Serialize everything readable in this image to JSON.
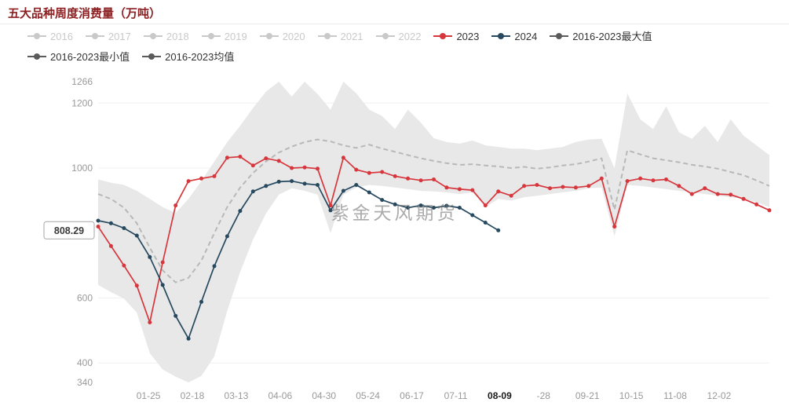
{
  "page": {
    "title": "五大品种周度消费量（万吨）"
  },
  "watermark": "紫金天风期货",
  "legend": {
    "inactive_color": "#c9c9c9",
    "active_text_color": "#333333",
    "items": [
      {
        "label": "2016",
        "color": "#c9c9c9",
        "active": false
      },
      {
        "label": "2017",
        "color": "#c9c9c9",
        "active": false
      },
      {
        "label": "2018",
        "color": "#c9c9c9",
        "active": false
      },
      {
        "label": "2019",
        "color": "#c9c9c9",
        "active": false
      },
      {
        "label": "2020",
        "color": "#c9c9c9",
        "active": false
      },
      {
        "label": "2021",
        "color": "#c9c9c9",
        "active": false
      },
      {
        "label": "2022",
        "color": "#c9c9c9",
        "active": false
      },
      {
        "label": "2023",
        "color": "#d6363c",
        "active": true
      },
      {
        "label": "2024",
        "color": "#27495f",
        "active": true
      },
      {
        "label": "2016-2023最大值",
        "color": "#5a5a5a",
        "active": true
      },
      {
        "label": "2016-2023最小值",
        "color": "#5a5a5a",
        "active": true
      },
      {
        "label": "2016-2023均值",
        "color": "#5a5a5a",
        "active": true
      }
    ]
  },
  "chart_data": {
    "type": "line",
    "title": "五大品种周度消费量（万吨）",
    "ylabel": "万吨",
    "ylim": [
      340,
      1266
    ],
    "n": 53,
    "y_ticks": [
      1266,
      1200,
      1000,
      600,
      400,
      340
    ],
    "grid_values": [
      1200,
      1000,
      600,
      400
    ],
    "band_color": "#e6e6e6",
    "mean_color": "#b8b8b8",
    "x_tick_labels": [
      "01-25",
      "02-18",
      "03-13",
      "04-06",
      "04-30",
      "05-24",
      "06-17",
      "07-11",
      "08-09",
      "-28",
      "09-21",
      "10-15",
      "11-08",
      "12-02"
    ],
    "highlight_x_label": "08-09",
    "last_value": 808.29,
    "last_value_label": "808.29",
    "legend_position": "top",
    "grid": true,
    "series": [
      {
        "name": "2016-2023最大值",
        "role": "max",
        "color": "#e6e6e6",
        "values": [
          965,
          955,
          948,
          930,
          905,
          880,
          862,
          905,
          960,
          1020,
          1080,
          1130,
          1185,
          1235,
          1266,
          1220,
          1266,
          1228,
          1180,
          1266,
          1230,
          1180,
          1160,
          1120,
          1180,
          1140,
          1092,
          1080,
          1075,
          1085,
          1070,
          1065,
          1060,
          1060,
          1055,
          1060,
          1065,
          1080,
          1088,
          1090,
          1000,
          1230,
          1150,
          1120,
          1190,
          1110,
          1090,
          1130,
          1080,
          1150,
          1100,
          1070,
          1040
        ]
      },
      {
        "name": "2016-2023最小值",
        "role": "min",
        "color": "#e6e6e6",
        "values": [
          640,
          618,
          598,
          555,
          430,
          380,
          358,
          340,
          360,
          420,
          560,
          680,
          780,
          860,
          918,
          938,
          930,
          918,
          800,
          918,
          940,
          948,
          945,
          940,
          935,
          930,
          928,
          925,
          920,
          925,
          880,
          905,
          900,
          910,
          915,
          920,
          925,
          930,
          938,
          940,
          790,
          948,
          945,
          940,
          935,
          930,
          925,
          920,
          915,
          910,
          905,
          895,
          880
        ]
      },
      {
        "name": "2016-2023均值",
        "role": "mean",
        "color": "#b8b8b8",
        "values": [
          920,
          905,
          878,
          830,
          755,
          685,
          648,
          662,
          715,
          800,
          880,
          940,
          985,
          1020,
          1048,
          1066,
          1080,
          1088,
          1082,
          1070,
          1062,
          1072,
          1060,
          1050,
          1040,
          1030,
          1022,
          1015,
          1010,
          1012,
          1008,
          1005,
          1000,
          1004,
          998,
          1002,
          1008,
          1012,
          1020,
          1030,
          872,
          1055,
          1042,
          1030,
          1024,
          1018,
          1010,
          1005,
          998,
          988,
          978,
          962,
          945
        ]
      },
      {
        "name": "2023",
        "role": "line2023",
        "color": "#d6363c",
        "values": [
          820,
          760,
          700,
          638,
          525,
          710,
          885,
          960,
          968,
          975,
          1032,
          1035,
          1008,
          1030,
          1022,
          1000,
          1002,
          998,
          885,
          1032,
          995,
          985,
          988,
          975,
          968,
          962,
          965,
          940,
          935,
          932,
          885,
          928,
          915,
          945,
          948,
          938,
          942,
          940,
          945,
          968,
          820,
          960,
          968,
          962,
          965,
          945,
          920,
          938,
          920,
          918,
          905,
          888,
          870
        ]
      },
      {
        "name": "2024",
        "role": "line2024",
        "color": "#27495f",
        "values": [
          838,
          830,
          815,
          792,
          726,
          640,
          545,
          475,
          588,
          698,
          790,
          868,
          928,
          945,
          958,
          960,
          952,
          948,
          870,
          930,
          948,
          925,
          902,
          888,
          878,
          885,
          878,
          884,
          878,
          855,
          832,
          808.29
        ]
      }
    ]
  }
}
